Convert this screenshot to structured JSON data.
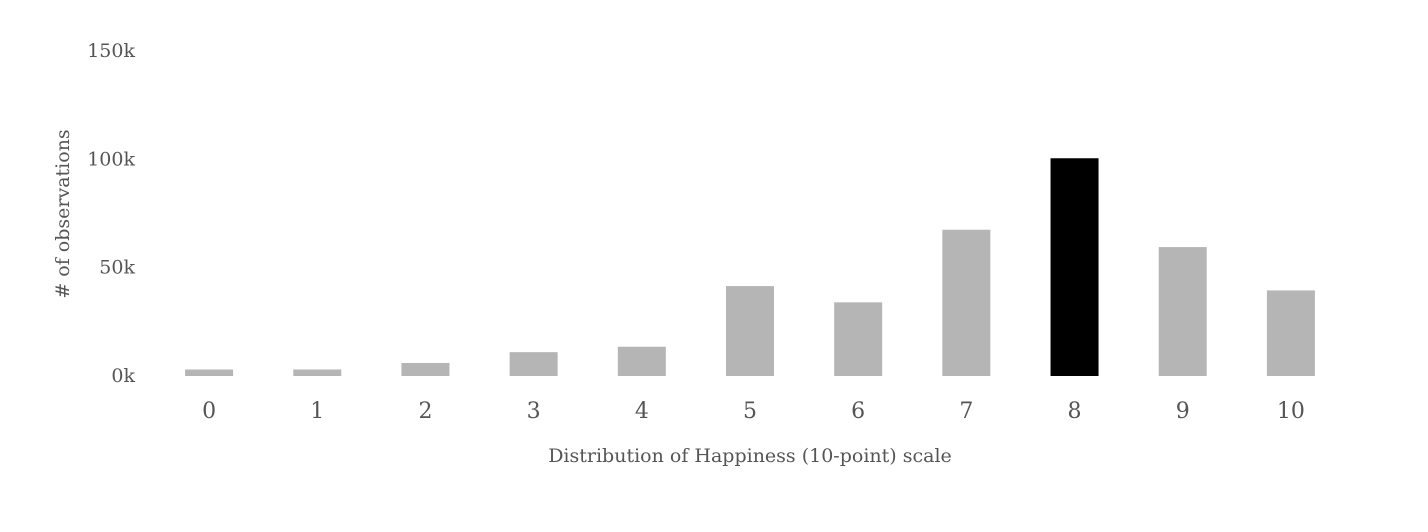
{
  "chart_data": {
    "type": "bar",
    "title": "",
    "xlabel": "Distribution of Happiness (10-point) scale",
    "ylabel": "# of observations",
    "categories": [
      "0",
      "1",
      "2",
      "3",
      "4",
      "5",
      "6",
      "7",
      "8",
      "9",
      "10"
    ],
    "values": [
      3000,
      3000,
      6000,
      11000,
      13500,
      41500,
      34000,
      67500,
      100500,
      59500,
      39500
    ],
    "ylim": [
      0,
      150000
    ],
    "yticks": [
      0,
      50000,
      100000,
      150000
    ],
    "ytick_labels": [
      "0k",
      "50k",
      "100k",
      "150k"
    ],
    "grid": false,
    "legend": "none",
    "highlight_category": "8",
    "colors": {
      "bar": "#b5b5b5",
      "highlight": "#000000",
      "text": "#555555"
    }
  }
}
